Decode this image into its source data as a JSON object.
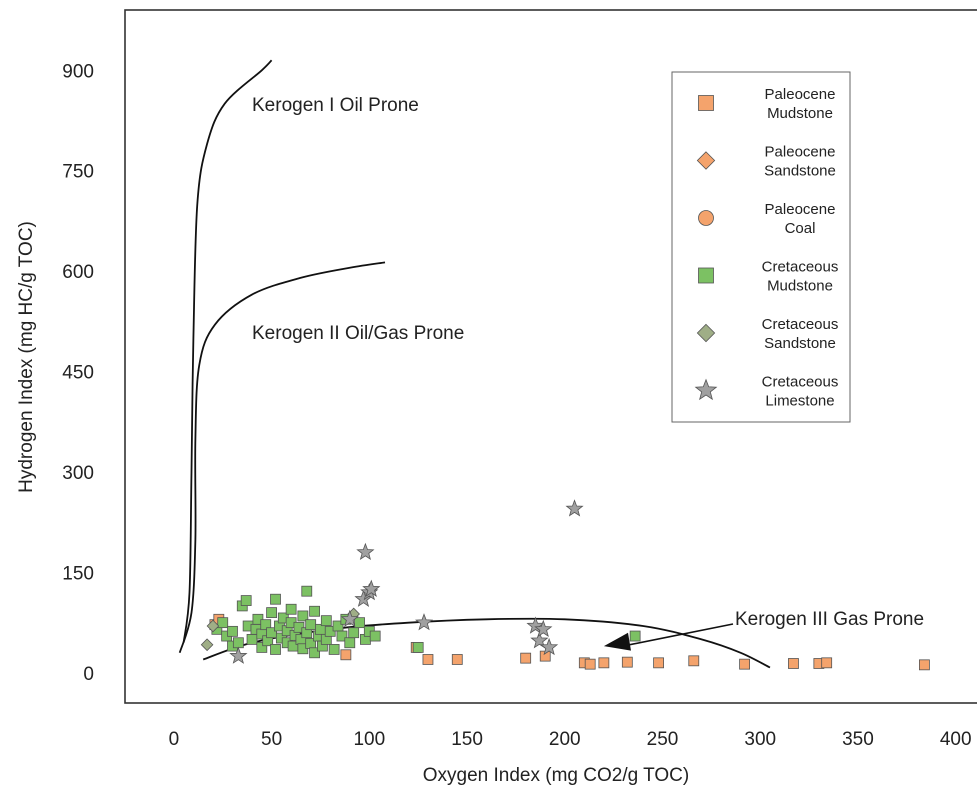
{
  "chart_data": {
    "type": "scatter",
    "xlabel": "Oxygen Index (mg CO2/g TOC)",
    "ylabel": "Hydrogen Index (mg HC/g TOC)",
    "xlim": [
      -25,
      415
    ],
    "ylim": [
      -45,
      990
    ],
    "xticks": [
      "0",
      "50",
      "100",
      "150",
      "200",
      "250",
      "300",
      "350",
      "400"
    ],
    "yticks": [
      "0",
      "150",
      "300",
      "450",
      "600",
      "750",
      "900"
    ],
    "legend_position": "top-right",
    "colors": {
      "paleocene": "#f4a36c",
      "cretaceous": "#7cc163",
      "sandstone_cret": "#9fae86",
      "limestone": "#a0a0a0"
    },
    "series": [
      {
        "name": "Paleocene Mudstone",
        "marker": "square",
        "color": "#f4a36c",
        "points": [
          [
            21,
            72
          ],
          [
            23,
            80
          ],
          [
            88,
            27
          ],
          [
            124,
            38
          ],
          [
            130,
            20
          ],
          [
            145,
            20
          ],
          [
            180,
            22
          ],
          [
            190,
            25
          ],
          [
            210,
            15
          ],
          [
            213,
            13
          ],
          [
            220,
            15
          ],
          [
            232,
            16
          ],
          [
            248,
            15
          ],
          [
            266,
            18
          ],
          [
            292,
            13
          ],
          [
            317,
            14
          ],
          [
            330,
            14
          ],
          [
            334,
            15
          ],
          [
            384,
            12
          ]
        ]
      },
      {
        "name": "Paleocene Sandstone",
        "marker": "diamond",
        "color": "#f4a36c",
        "points": []
      },
      {
        "name": "Paleocene Coal",
        "marker": "circle",
        "color": "#f4a36c",
        "points": []
      },
      {
        "name": "Cretaceous Mudstone",
        "marker": "square",
        "color": "#7cc163",
        "points": [
          [
            22,
            65
          ],
          [
            25,
            75
          ],
          [
            27,
            55
          ],
          [
            30,
            62
          ],
          [
            30,
            40
          ],
          [
            33,
            45
          ],
          [
            35,
            100
          ],
          [
            37,
            108
          ],
          [
            38,
            70
          ],
          [
            40,
            50
          ],
          [
            42,
            65
          ],
          [
            43,
            80
          ],
          [
            45,
            58
          ],
          [
            45,
            38
          ],
          [
            47,
            72
          ],
          [
            48,
            48
          ],
          [
            50,
            90
          ],
          [
            50,
            60
          ],
          [
            52,
            110
          ],
          [
            52,
            35
          ],
          [
            54,
            70
          ],
          [
            55,
            52
          ],
          [
            56,
            82
          ],
          [
            58,
            45
          ],
          [
            58,
            63
          ],
          [
            60,
            95
          ],
          [
            60,
            75
          ],
          [
            61,
            40
          ],
          [
            62,
            56
          ],
          [
            64,
            68
          ],
          [
            65,
            50
          ],
          [
            66,
            85
          ],
          [
            66,
            36
          ],
          [
            68,
            122
          ],
          [
            68,
            60
          ],
          [
            70,
            44
          ],
          [
            70,
            72
          ],
          [
            72,
            92
          ],
          [
            72,
            30
          ],
          [
            74,
            55
          ],
          [
            75,
            65
          ],
          [
            76,
            40
          ],
          [
            78,
            78
          ],
          [
            78,
            50
          ],
          [
            80,
            62
          ],
          [
            82,
            35
          ],
          [
            84,
            70
          ],
          [
            86,
            55
          ],
          [
            88,
            80
          ],
          [
            90,
            45
          ],
          [
            92,
            60
          ],
          [
            95,
            75
          ],
          [
            98,
            50
          ],
          [
            100,
            62
          ],
          [
            103,
            55
          ],
          [
            236,
            55
          ],
          [
            125,
            38
          ]
        ]
      },
      {
        "name": "Cretaceous Sandstone",
        "marker": "diamond",
        "color": "#9fae86",
        "points": [
          [
            17,
            42
          ],
          [
            20,
            70
          ],
          [
            92,
            88
          ]
        ]
      },
      {
        "name": "Cretaceous Limestone",
        "marker": "star",
        "color": "#a0a0a0",
        "points": [
          [
            33,
            25
          ],
          [
            90,
            80
          ],
          [
            97,
            110
          ],
          [
            98,
            180
          ],
          [
            100,
            120
          ],
          [
            101,
            125
          ],
          [
            128,
            75
          ],
          [
            185,
            70
          ],
          [
            187,
            48
          ],
          [
            189,
            65
          ],
          [
            192,
            38
          ],
          [
            205,
            245
          ]
        ]
      }
    ],
    "curves": [
      {
        "label": "Kerogen I Oil Prone",
        "points": [
          [
            5,
            45
          ],
          [
            8,
            120
          ],
          [
            9,
            300
          ],
          [
            10,
            500
          ],
          [
            12,
            700
          ],
          [
            17,
            790
          ],
          [
            26,
            850
          ],
          [
            45,
            900
          ],
          [
            50,
            915
          ]
        ]
      },
      {
        "label": "Kerogen II Oil/Gas Prone",
        "points": [
          [
            3,
            30
          ],
          [
            9,
            90
          ],
          [
            11,
            200
          ],
          [
            11,
            350
          ],
          [
            13,
            460
          ],
          [
            21,
            520
          ],
          [
            40,
            565
          ],
          [
            65,
            590
          ],
          [
            90,
            605
          ],
          [
            108,
            613
          ]
        ]
      },
      {
        "label": "Kerogen III Gas Prone",
        "points": [
          [
            15,
            20
          ],
          [
            40,
            45
          ],
          [
            80,
            65
          ],
          [
            120,
            75
          ],
          [
            160,
            80
          ],
          [
            200,
            80
          ],
          [
            240,
            70
          ],
          [
            270,
            50
          ],
          [
            290,
            30
          ],
          [
            305,
            8
          ]
        ]
      }
    ],
    "annotation": {
      "label": "Kerogen III Gas Prone",
      "from": [
        290,
        55
      ],
      "to": [
        220,
        40
      ]
    }
  }
}
